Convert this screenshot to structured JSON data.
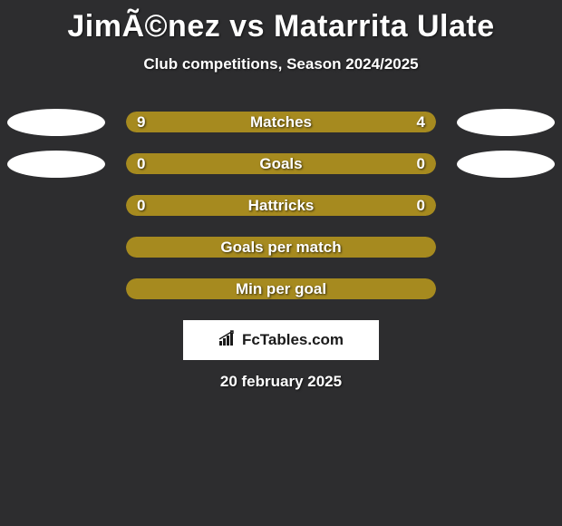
{
  "title": "JimÃ©nez vs Matarrita Ulate",
  "subtitle": "Club competitions, Season 2024/2025",
  "date": "20 february 2025",
  "brand": "FcTables.com",
  "colors": {
    "background": "#2d2d2f",
    "bar_olive": "#a68a1f",
    "ellipse_white": "#ffffff",
    "text_white": "#ffffff"
  },
  "rows": [
    {
      "label": "Matches",
      "left_val": "9",
      "right_val": "4",
      "left_pct": 67,
      "right_pct": 33,
      "left_color": "#a68a1f",
      "right_color": "#a68a1f",
      "ellipse_left": "#ffffff",
      "ellipse_right": "#ffffff",
      "show_ellipses": true
    },
    {
      "label": "Goals",
      "left_val": "0",
      "right_val": "0",
      "left_pct": 100,
      "right_pct": 0,
      "left_color": "#a68a1f",
      "right_color": "#a68a1f",
      "ellipse_left": "#ffffff",
      "ellipse_right": "#ffffff",
      "show_ellipses": true
    },
    {
      "label": "Hattricks",
      "left_val": "0",
      "right_val": "0",
      "left_pct": 100,
      "right_pct": 0,
      "left_color": "#a68a1f",
      "right_color": "#a68a1f",
      "ellipse_left": null,
      "ellipse_right": null,
      "show_ellipses": false
    },
    {
      "label": "Goals per match",
      "left_val": "",
      "right_val": "",
      "left_pct": 100,
      "right_pct": 0,
      "left_color": "#a68a1f",
      "right_color": "#a68a1f",
      "ellipse_left": null,
      "ellipse_right": null,
      "show_ellipses": false
    },
    {
      "label": "Min per goal",
      "left_val": "",
      "right_val": "",
      "left_pct": 100,
      "right_pct": 0,
      "left_color": "#a68a1f",
      "right_color": "#a68a1f",
      "ellipse_left": null,
      "ellipse_right": null,
      "show_ellipses": false
    }
  ]
}
